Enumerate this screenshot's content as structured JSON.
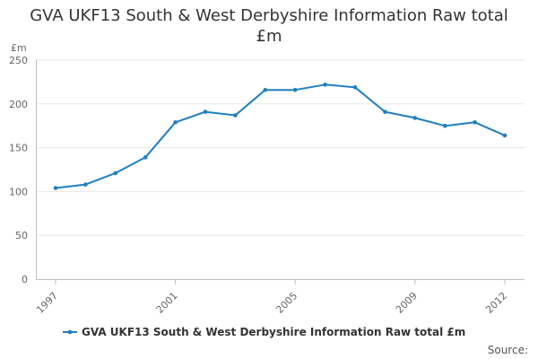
{
  "chart_data": {
    "type": "line",
    "title": "GVA UKF13 South & West Derbyshire Information Raw total £m",
    "ylabel": "£m",
    "xlabel": "",
    "x": [
      1997,
      1998,
      1999,
      2000,
      2001,
      2002,
      2003,
      2004,
      2005,
      2006,
      2007,
      2008,
      2009,
      2010,
      2011,
      2012
    ],
    "x_tick_labels": [
      "1997",
      "2001",
      "2005",
      "2009",
      "2012"
    ],
    "y_tick_labels": [
      "0",
      "50",
      "100",
      "150",
      "200",
      "250"
    ],
    "ylim": [
      0,
      250
    ],
    "grid": true,
    "legend_position": "bottom",
    "series": [
      {
        "name": "GVA UKF13 South & West Derbyshire Information Raw total £m",
        "color": "#1f7fbf",
        "values": [
          104,
          108,
          121,
          139,
          179,
          191,
          187,
          216,
          216,
          222,
          219,
          191,
          184,
          175,
          179,
          164
        ]
      }
    ],
    "source_label": "Source:"
  }
}
